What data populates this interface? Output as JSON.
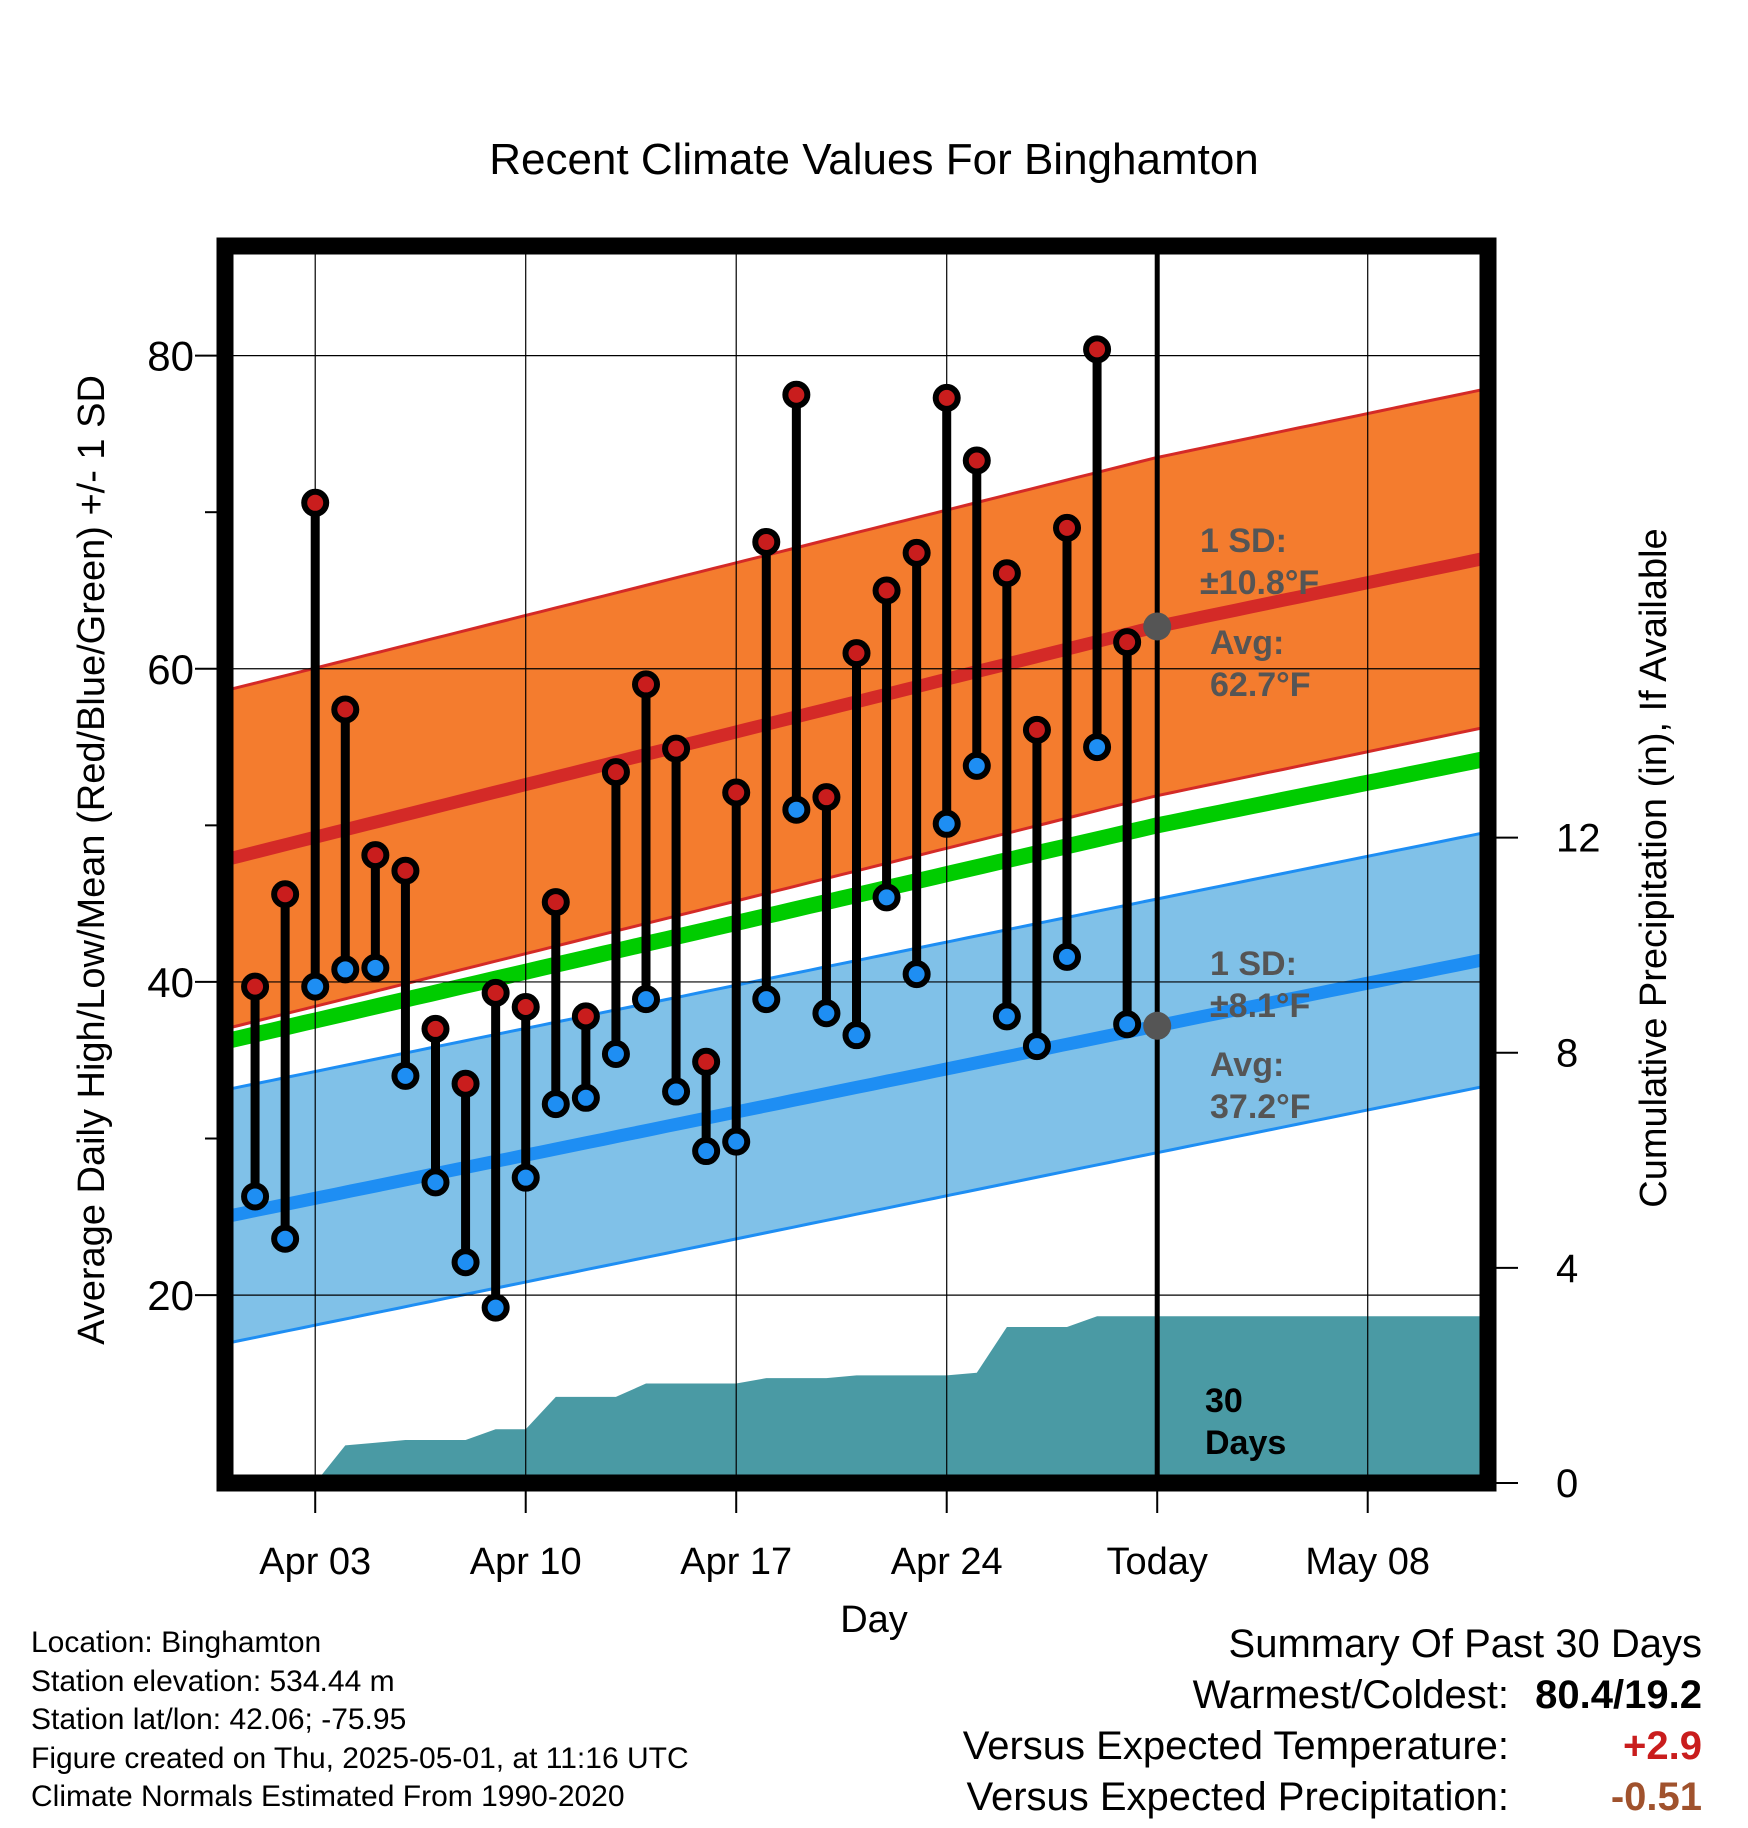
{
  "chart_data": {
    "type": "line",
    "title": "Recent Climate Values For Binghamton",
    "xlabel": "Day",
    "ylabel_left": "Average Daily High/Low/Mean (Red/Blue/Green) +/- 1 SD",
    "ylabel_right": "Cumulative Precipitation (in), If Available",
    "x_range": [
      "2025-03-31",
      "2025-05-12"
    ],
    "ylim_left": [
      8,
      87
    ],
    "ylim_right": [
      0,
      23
    ],
    "x_ticks": [
      {
        "date": "2025-04-03",
        "label": "Apr 03"
      },
      {
        "date": "2025-04-10",
        "label": "Apr 10"
      },
      {
        "date": "2025-04-17",
        "label": "Apr 17"
      },
      {
        "date": "2025-04-24",
        "label": "Apr 24"
      },
      {
        "date": "2025-05-01",
        "label": "Today"
      },
      {
        "date": "2025-05-08",
        "label": "May 08"
      }
    ],
    "y_ticks_left": [
      20,
      40,
      60,
      80
    ],
    "y_ticks_right": [
      0,
      4,
      8,
      12
    ],
    "grid": true,
    "normals": {
      "dates": [
        "2025-03-31",
        "2025-05-01",
        "2025-05-10"
      ],
      "high_mean": [
        47.8,
        62.7,
        66.3
      ],
      "high_sd": 10.8,
      "low_mean": [
        25.0,
        37.2,
        40.7
      ],
      "low_sd": 8.1,
      "mean": [
        36.2,
        50.0,
        53.5
      ]
    },
    "daily_observations": {
      "dates": [
        "2025-04-01",
        "2025-04-02",
        "2025-04-03",
        "2025-04-04",
        "2025-04-05",
        "2025-04-06",
        "2025-04-07",
        "2025-04-08",
        "2025-04-09",
        "2025-04-10",
        "2025-04-11",
        "2025-04-12",
        "2025-04-13",
        "2025-04-14",
        "2025-04-15",
        "2025-04-16",
        "2025-04-17",
        "2025-04-18",
        "2025-04-19",
        "2025-04-20",
        "2025-04-21",
        "2025-04-22",
        "2025-04-23",
        "2025-04-24",
        "2025-04-25",
        "2025-04-26",
        "2025-04-27",
        "2025-04-28",
        "2025-04-29",
        "2025-04-30"
      ],
      "high": [
        39.7,
        45.6,
        70.6,
        57.4,
        48.1,
        47.1,
        37.0,
        33.5,
        39.3,
        38.4,
        45.1,
        37.8,
        53.4,
        59.0,
        54.9,
        34.9,
        52.1,
        68.1,
        77.5,
        51.8,
        61.0,
        65.0,
        67.4,
        77.3,
        73.3,
        66.1,
        56.1,
        69.0,
        80.4,
        61.7
      ],
      "low": [
        26.3,
        23.6,
        39.7,
        40.8,
        40.9,
        34.0,
        27.2,
        22.1,
        19.2,
        27.5,
        32.2,
        32.6,
        35.4,
        38.9,
        33.0,
        29.2,
        29.8,
        38.9,
        51.0,
        38.0,
        36.6,
        45.4,
        40.5,
        50.1,
        53.8,
        37.8,
        35.9,
        41.6,
        55.0,
        37.3
      ]
    },
    "cumulative_precipitation": {
      "dates": [
        "2025-03-31",
        "2025-04-01",
        "2025-04-02",
        "2025-04-03",
        "2025-04-04",
        "2025-04-05",
        "2025-04-06",
        "2025-04-07",
        "2025-04-08",
        "2025-04-09",
        "2025-04-10",
        "2025-04-11",
        "2025-04-12",
        "2025-04-13",
        "2025-04-14",
        "2025-04-15",
        "2025-04-16",
        "2025-04-17",
        "2025-04-18",
        "2025-04-19",
        "2025-04-20",
        "2025-04-21",
        "2025-04-22",
        "2025-04-23",
        "2025-04-24",
        "2025-04-25",
        "2025-04-26",
        "2025-04-27",
        "2025-04-28",
        "2025-04-29",
        "2025-04-30",
        "2025-05-01",
        "2025-05-10"
      ],
      "values": [
        0,
        0,
        0,
        0,
        0.7,
        0.75,
        0.8,
        0.8,
        0.8,
        1.0,
        1.0,
        1.6,
        1.6,
        1.6,
        1.85,
        1.85,
        1.85,
        1.85,
        1.95,
        1.95,
        1.95,
        2.0,
        2.0,
        2.0,
        2.0,
        2.05,
        2.9,
        2.9,
        2.9,
        3.1,
        3.1,
        3.1,
        3.1
      ]
    },
    "annotations": {
      "high_sd": "1 SD:\n±10.8°F",
      "high_avg": "Avg:\n62.7°F",
      "low_sd": "1 SD:\n±8.1°F",
      "low_avg": "Avg:\n37.2°F",
      "days": "30\nDays"
    },
    "colors": {
      "high_band": "#f47c2e",
      "high_line": "#d42a27",
      "low_band": "#80c1e8",
      "low_line": "#1e8ef3",
      "mean_line": "#00cc00",
      "precip": "#4a9aa4",
      "high_dot": "#c91d1d",
      "low_dot": "#1e8ef3",
      "today_dot": "#555555"
    }
  },
  "info": {
    "location": "Location: Binghamton",
    "elevation": "Station elevation: 534.44 m",
    "latlon": "Station lat/lon: 42.06; -75.95",
    "created": "Figure created on Thu, 2025-05-01, at 11:16 UTC",
    "normals": "Climate Normals Estimated From 1990-2020"
  },
  "summary": {
    "heading": "Summary Of Past 30 Days",
    "warm_cold_label": "Warmest/Coldest:",
    "warm_cold_value": "80.4/19.2",
    "temp_label": "Versus Expected Temperature:",
    "temp_value": "+2.9",
    "temp_color": "#c91d1d",
    "precip_label": "Versus Expected Precipitation:",
    "precip_value": "-0.51",
    "precip_color": "#a0522d"
  }
}
